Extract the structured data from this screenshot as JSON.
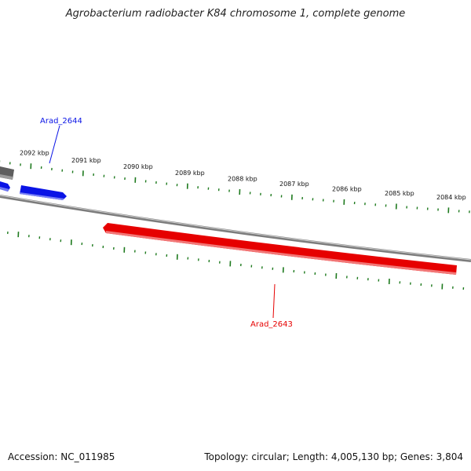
{
  "title": "Agrobacterium radiobacter K84 chromosome 1, complete genome",
  "footer": {
    "accession": "Accession: NC_011985",
    "summary": "Topology: circular; Length: 4,005,130 bp; Genes: 3,804"
  },
  "colors": {
    "backbone": "#808080",
    "forward_gene": "#0a14e6",
    "reverse_gene": "#e60000",
    "tick": "#1e7a1e",
    "other_gene": "#6e6e6e"
  },
  "ticks": {
    "outer_labels": [
      "2092 kbp",
      "2091 kbp",
      "2090 kbp",
      "2089 kbp",
      "2088 kbp",
      "2087 kbp",
      "2086 kbp",
      "2085 kbp",
      "2084 kbp"
    ]
  },
  "genes": [
    {
      "id": "Arad_2644",
      "strand": "forward"
    },
    {
      "id": "Arad_2643",
      "strand": "reverse"
    }
  ]
}
